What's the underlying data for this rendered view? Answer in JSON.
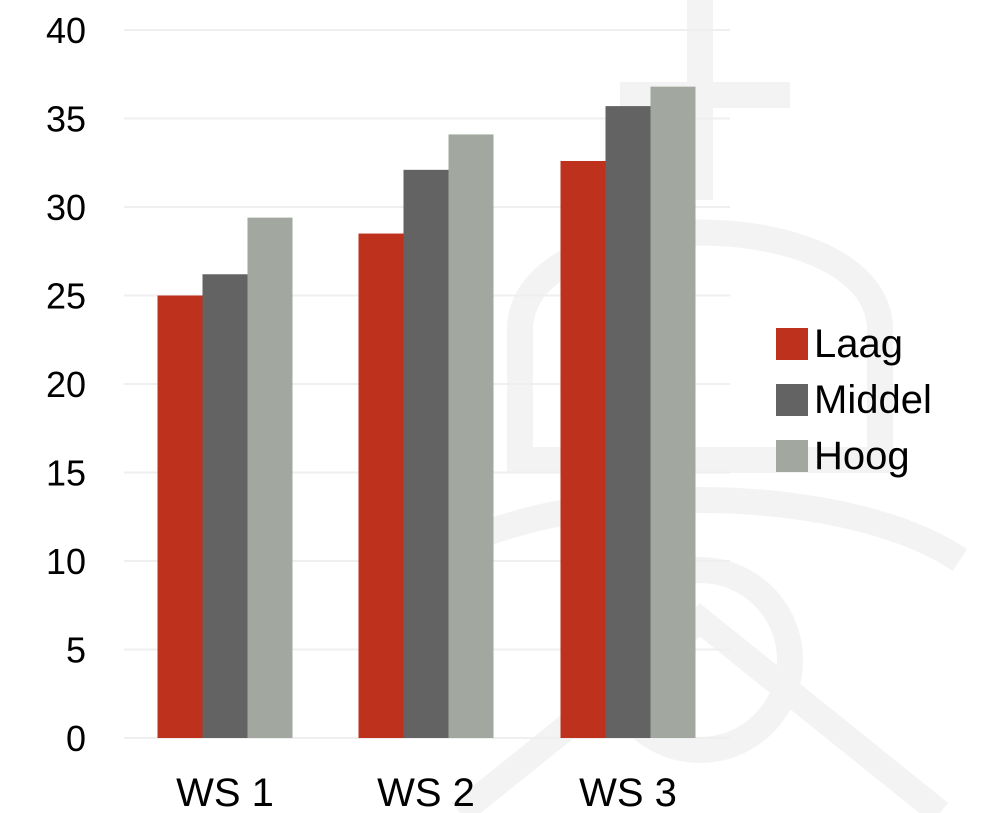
{
  "chart_data": {
    "type": "bar",
    "categories": [
      "WS 1",
      "WS 2",
      "WS 3"
    ],
    "series": [
      {
        "name": "Laag",
        "color": "#BE311C",
        "values": [
          25.0,
          28.5,
          32.6
        ]
      },
      {
        "name": "Middel",
        "color": "#636363",
        "values": [
          26.2,
          32.1,
          35.7
        ]
      },
      {
        "name": "Hoog",
        "color": "#A2A89F",
        "values": [
          29.4,
          34.1,
          36.8
        ]
      }
    ],
    "ylim": [
      0,
      40
    ],
    "yticks": [
      "0",
      "5",
      "10",
      "15",
      "20",
      "25",
      "30",
      "35",
      "40"
    ],
    "title": "",
    "xlabel": "",
    "ylabel": "",
    "grid": true,
    "legend_position": "right"
  },
  "colors": {
    "background": "#FFFFFF",
    "gridline": "#EFEFEF",
    "watermark": "#F4F4F4"
  }
}
